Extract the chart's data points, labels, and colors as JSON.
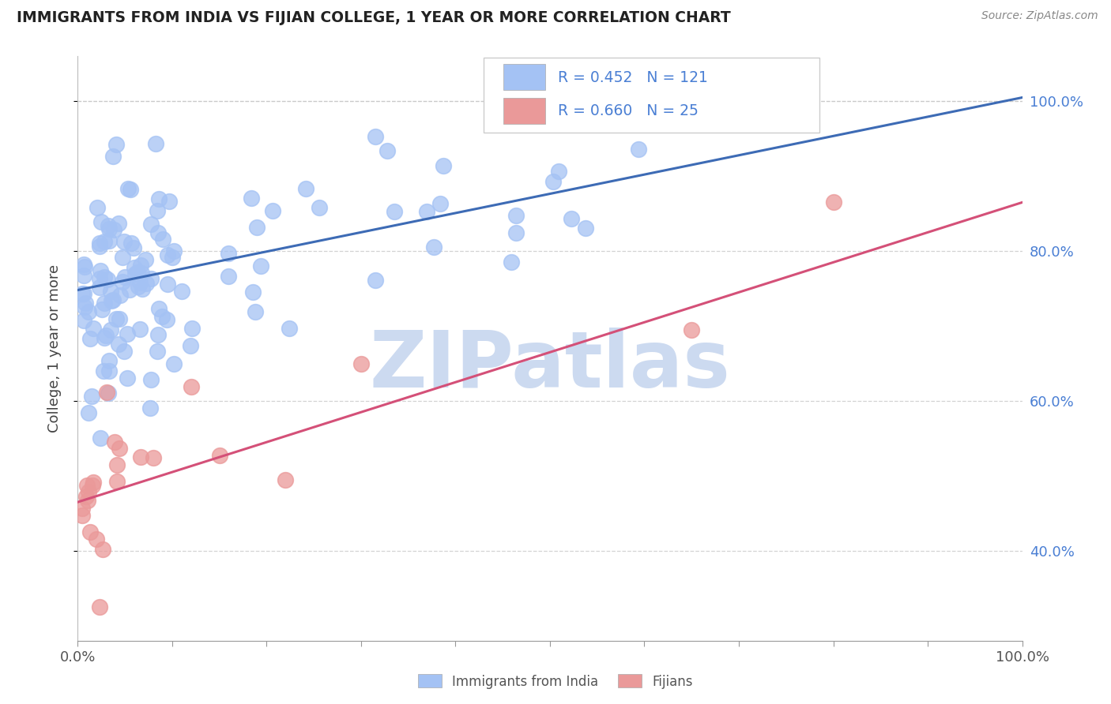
{
  "title": "IMMIGRANTS FROM INDIA VS FIJIAN COLLEGE, 1 YEAR OR MORE CORRELATION CHART",
  "source": "Source: ZipAtlas.com",
  "ylabel": "College, 1 year or more",
  "xlim": [
    0.0,
    1.0
  ],
  "ylim": [
    0.28,
    1.06
  ],
  "blue_R": 0.452,
  "blue_N": 121,
  "pink_R": 0.66,
  "pink_N": 25,
  "blue_color": "#a4c2f4",
  "pink_color": "#ea9999",
  "blue_line_color": "#3d6bb5",
  "pink_line_color": "#d45078",
  "watermark": "ZIPatlas",
  "watermark_color": "#ccdaf0",
  "legend_label_blue": "Immigrants from India",
  "legend_label_pink": "Fijians",
  "yticks": [
    0.4,
    0.6,
    0.8,
    1.0
  ],
  "ytick_labels": [
    "40.0%",
    "60.0%",
    "80.0%",
    "100.0%"
  ],
  "xticks": [
    0.0,
    0.1,
    0.2,
    0.3,
    0.4,
    0.5,
    0.6,
    0.7,
    0.8,
    0.9,
    1.0
  ],
  "xtick_labels_show": [
    "0.0%",
    "",
    "",
    "",
    "",
    "",
    "",
    "",
    "",
    "",
    "100.0%"
  ],
  "blue_line_y_start": 0.748,
  "blue_line_y_end": 1.005,
  "pink_line_y_start": 0.465,
  "pink_line_y_end": 0.865,
  "background_color": "#ffffff",
  "grid_color": "#c8c8c8",
  "grid_alpha": 0.8,
  "title_color": "#222222",
  "source_color": "#888888",
  "right_tick_color": "#4a7fd4",
  "bottom_label_color": "#555555"
}
